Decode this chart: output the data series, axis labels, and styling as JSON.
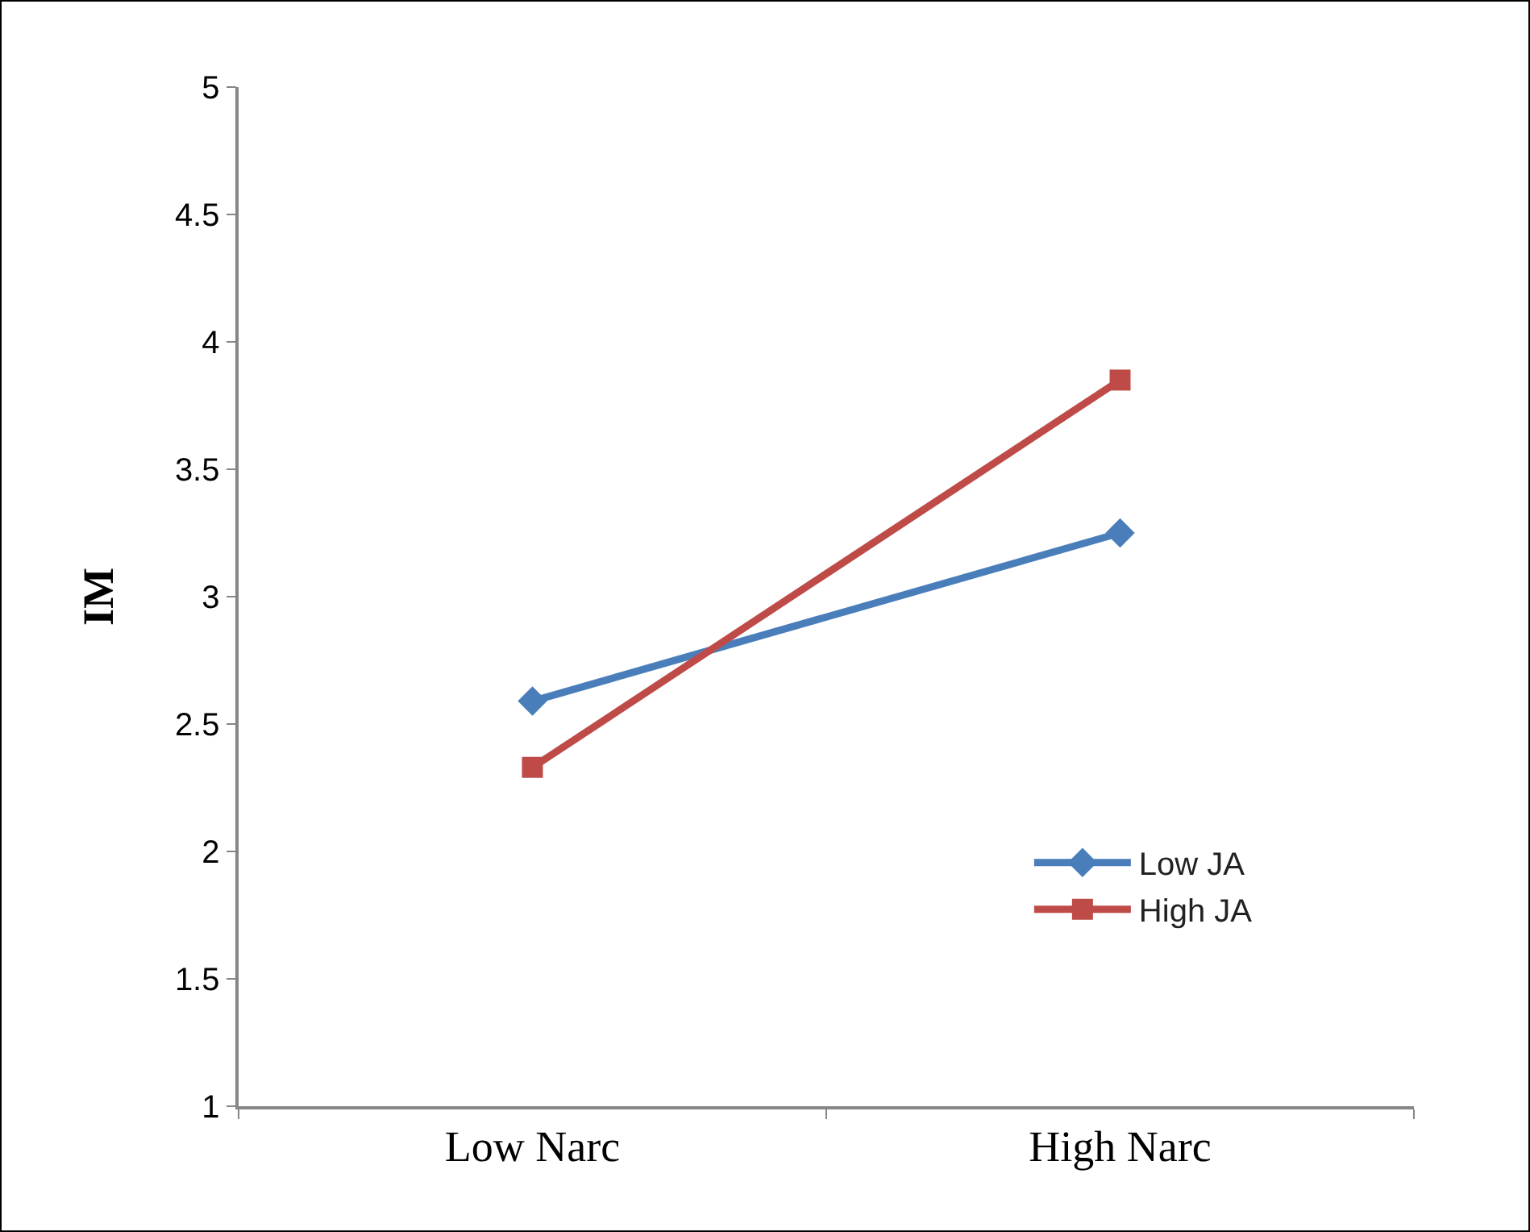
{
  "chart_data": {
    "type": "line",
    "ylabel": "IM",
    "categories": [
      "Low Narc",
      "High Narc"
    ],
    "series": [
      {
        "name": "Low JA",
        "color": "#4a7ebb",
        "values": [
          2.59,
          3.25
        ],
        "marker": "diamond"
      },
      {
        "name": "High JA",
        "color": "#be4b48",
        "values": [
          2.33,
          3.85
        ],
        "marker": "square"
      }
    ],
    "ylim": [
      1,
      5
    ],
    "yticks": [
      1,
      1.5,
      2,
      2.5,
      3,
      3.5,
      4,
      4.5,
      5
    ],
    "grid": false,
    "legend": "bottom right",
    "line_style": "solid"
  }
}
